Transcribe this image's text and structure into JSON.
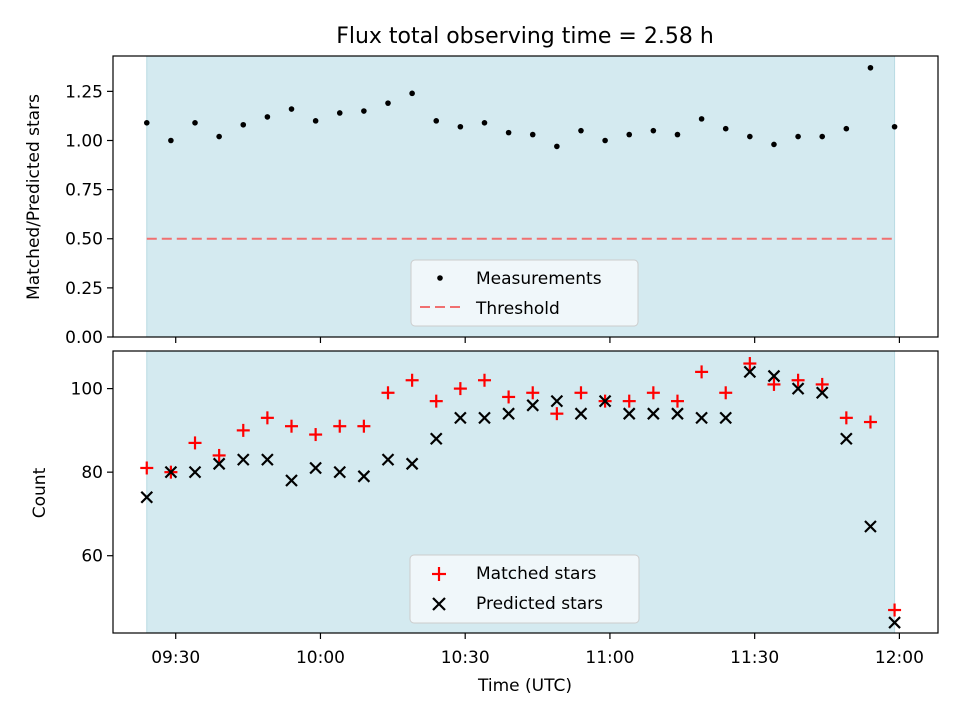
{
  "chart_data": [
    {
      "type": "scatter",
      "title": "Flux total observing time = 2.58 h",
      "ylabel": "Matched/Predicted stars",
      "xlabel": "",
      "ylim": [
        0,
        1.43
      ],
      "yticks": [
        0.0,
        0.25,
        0.5,
        0.75,
        1.0,
        1.25
      ],
      "ytick_labels": [
        "0.00",
        "0.25",
        "0.50",
        "0.75",
        "1.00",
        "1.25"
      ],
      "shaded_span": {
        "start": "09:24",
        "end": "11:59",
        "color": "#d4eaf0"
      },
      "series": [
        {
          "name": "Measurements",
          "marker": "dot",
          "color": "#000000",
          "x": [
            "09:24",
            "09:29",
            "09:34",
            "09:39",
            "09:44",
            "09:49",
            "09:54",
            "09:59",
            "10:04",
            "10:09",
            "10:14",
            "10:19",
            "10:24",
            "10:29",
            "10:34",
            "10:39",
            "10:44",
            "10:49",
            "10:54",
            "10:59",
            "11:04",
            "11:09",
            "11:14",
            "11:19",
            "11:24",
            "11:29",
            "11:34",
            "11:39",
            "11:44",
            "11:49",
            "11:54",
            "11:59"
          ],
          "values": [
            1.09,
            1.0,
            1.09,
            1.02,
            1.08,
            1.12,
            1.16,
            1.1,
            1.14,
            1.15,
            1.19,
            1.24,
            1.1,
            1.07,
            1.09,
            1.04,
            1.03,
            0.97,
            1.05,
            1.0,
            1.03,
            1.05,
            1.03,
            1.11,
            1.06,
            1.02,
            0.98,
            1.02,
            1.02,
            1.06,
            1.37,
            1.07
          ]
        }
      ],
      "threshold": {
        "name": "Threshold",
        "value": 0.5,
        "color": "#f07070"
      },
      "legend": {
        "position": "bottom-center",
        "entries": [
          "Measurements",
          "Threshold"
        ]
      }
    },
    {
      "type": "scatter",
      "title": "",
      "ylabel": "Count",
      "xlabel": "Time (UTC)",
      "ylim": [
        41.5,
        109
      ],
      "yticks": [
        60,
        80,
        100
      ],
      "ytick_labels": [
        "60",
        "80",
        "100"
      ],
      "xlim": [
        "09:17",
        "12:08"
      ],
      "xticks": [
        "09:30",
        "10:00",
        "10:30",
        "11:00",
        "11:30",
        "12:00"
      ],
      "shaded_span": {
        "start": "09:24",
        "end": "11:59",
        "color": "#d4eaf0"
      },
      "series": [
        {
          "name": "Matched stars",
          "marker": "plus",
          "color": "#ff0000",
          "x": [
            "09:24",
            "09:29",
            "09:34",
            "09:39",
            "09:44",
            "09:49",
            "09:54",
            "09:59",
            "10:04",
            "10:09",
            "10:14",
            "10:19",
            "10:24",
            "10:29",
            "10:34",
            "10:39",
            "10:44",
            "10:49",
            "10:54",
            "10:59",
            "11:04",
            "11:09",
            "11:14",
            "11:19",
            "11:24",
            "11:29",
            "11:34",
            "11:39",
            "11:44",
            "11:49",
            "11:54",
            "11:59"
          ],
          "values": [
            81,
            80,
            87,
            84,
            90,
            93,
            91,
            89,
            91,
            91,
            99,
            102,
            97,
            100,
            102,
            98,
            99,
            94,
            99,
            97,
            97,
            99,
            97,
            104,
            99,
            106,
            101,
            102,
            101,
            93,
            92,
            47
          ]
        },
        {
          "name": "Predicted stars",
          "marker": "x",
          "color": "#000000",
          "x": [
            "09:24",
            "09:29",
            "09:34",
            "09:39",
            "09:44",
            "09:49",
            "09:54",
            "09:59",
            "10:04",
            "10:09",
            "10:14",
            "10:19",
            "10:24",
            "10:29",
            "10:34",
            "10:39",
            "10:44",
            "10:49",
            "10:54",
            "10:59",
            "11:04",
            "11:09",
            "11:14",
            "11:19",
            "11:24",
            "11:29",
            "11:34",
            "11:39",
            "11:44",
            "11:49",
            "11:54",
            "11:59"
          ],
          "values": [
            74,
            80,
            80,
            82,
            83,
            83,
            78,
            81,
            80,
            79,
            83,
            82,
            88,
            93,
            93,
            94,
            96,
            97,
            94,
            97,
            94,
            94,
            94,
            93,
            93,
            104,
            103,
            100,
            99,
            88,
            67,
            44
          ]
        }
      ],
      "legend": {
        "position": "bottom-center",
        "entries": [
          "Matched stars",
          "Predicted stars"
        ]
      }
    }
  ]
}
